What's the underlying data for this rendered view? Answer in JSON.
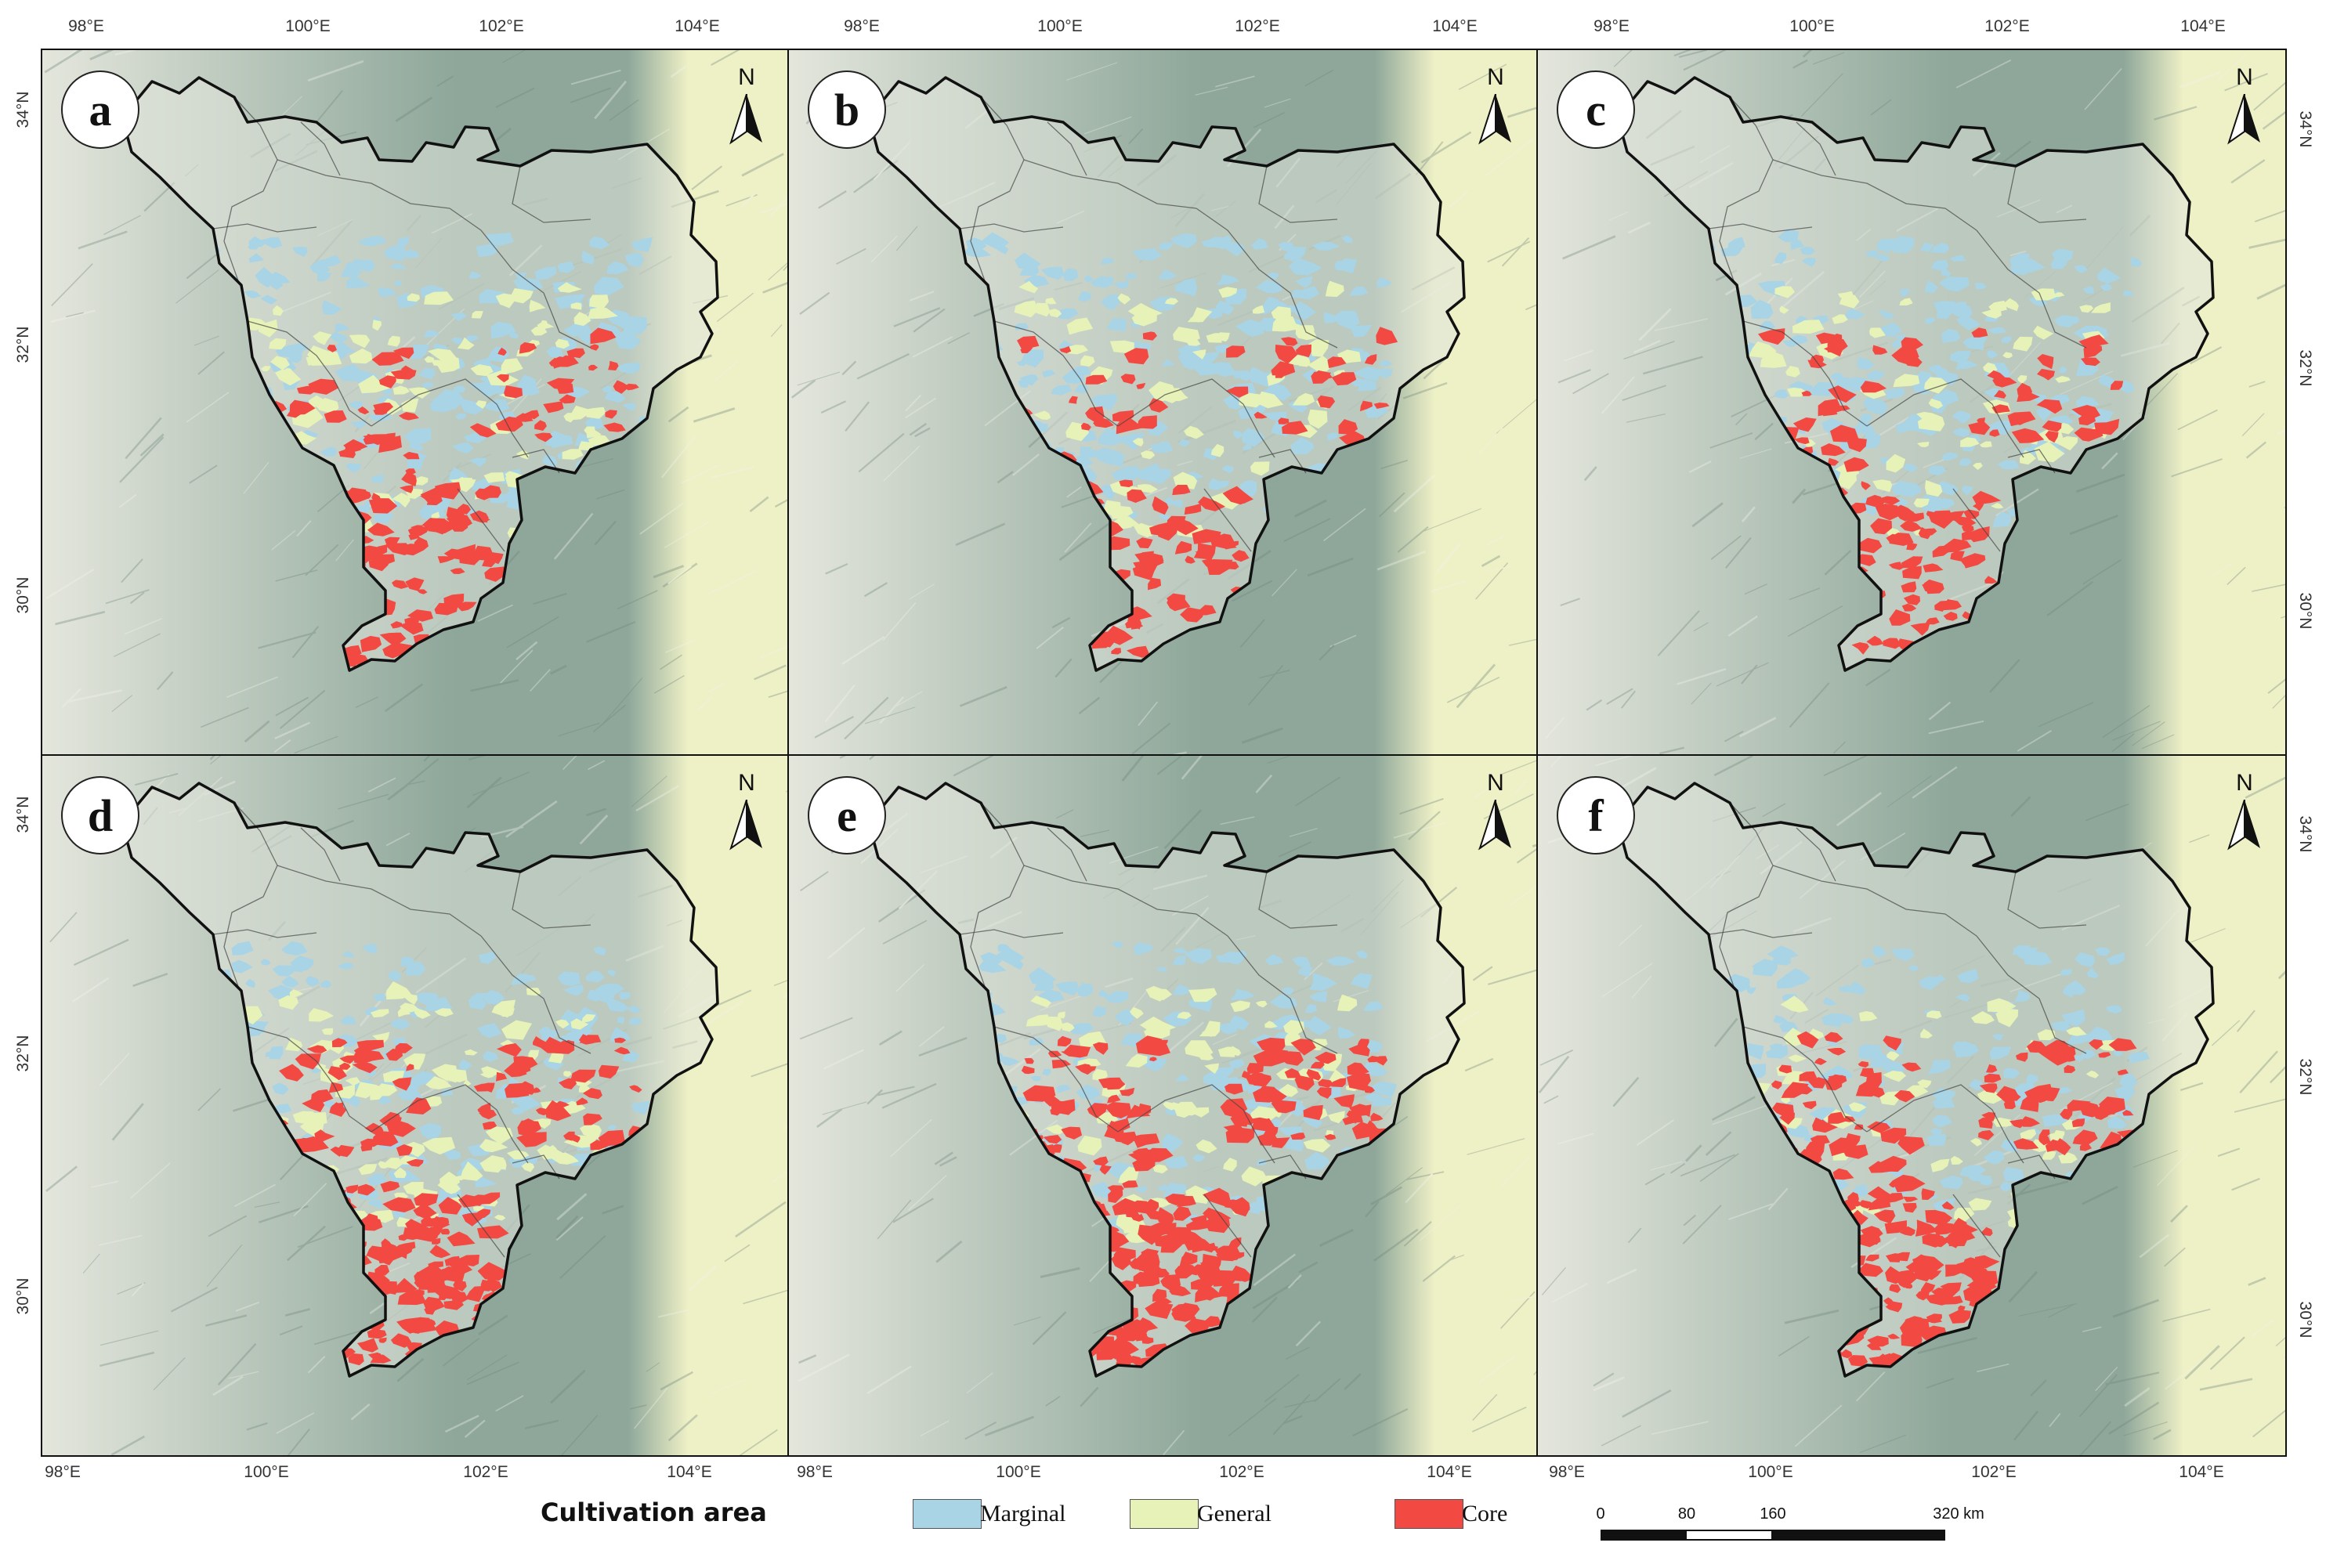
{
  "figure": {
    "top_x_ticks": [
      "98°E",
      "100°E",
      "102°E",
      "104°E"
    ],
    "bottom_x_ticks": [
      "98°E",
      "100°E",
      "102°E",
      "104°E"
    ],
    "left_y_ticks": [
      "34°N",
      "32°N",
      "30°N"
    ],
    "right_y_ticks": [
      "34°N",
      "32°N",
      "30°N"
    ],
    "north_label": "N"
  },
  "panels": [
    {
      "label": "a",
      "core_level": 0.45,
      "general_level": 0.55,
      "marginal_level": 0.75
    },
    {
      "label": "b",
      "core_level": 0.35,
      "general_level": 0.45,
      "marginal_level": 0.75
    },
    {
      "label": "c",
      "core_level": 0.4,
      "general_level": 0.4,
      "marginal_level": 0.7
    },
    {
      "label": "d",
      "core_level": 0.65,
      "general_level": 0.6,
      "marginal_level": 0.7
    },
    {
      "label": "e",
      "core_level": 0.85,
      "general_level": 0.5,
      "marginal_level": 0.6
    },
    {
      "label": "f",
      "core_level": 0.7,
      "general_level": 0.35,
      "marginal_level": 0.55
    }
  ],
  "legend": {
    "title": "Cultivation area",
    "items": [
      {
        "label": "Marginal",
        "color": "#a9d4e6"
      },
      {
        "label": "General",
        "color": "#e6f2b7"
      },
      {
        "label": "Core",
        "color": "#f24a42"
      }
    ]
  },
  "scale_bar": {
    "labels": [
      "0",
      "80",
      "160",
      "320 km"
    ]
  },
  "colors": {
    "terrain_light": "#e4e6dc",
    "terrain_dark": "#8ea79a",
    "basin": "#eef0c6",
    "boundary": "#111111"
  }
}
